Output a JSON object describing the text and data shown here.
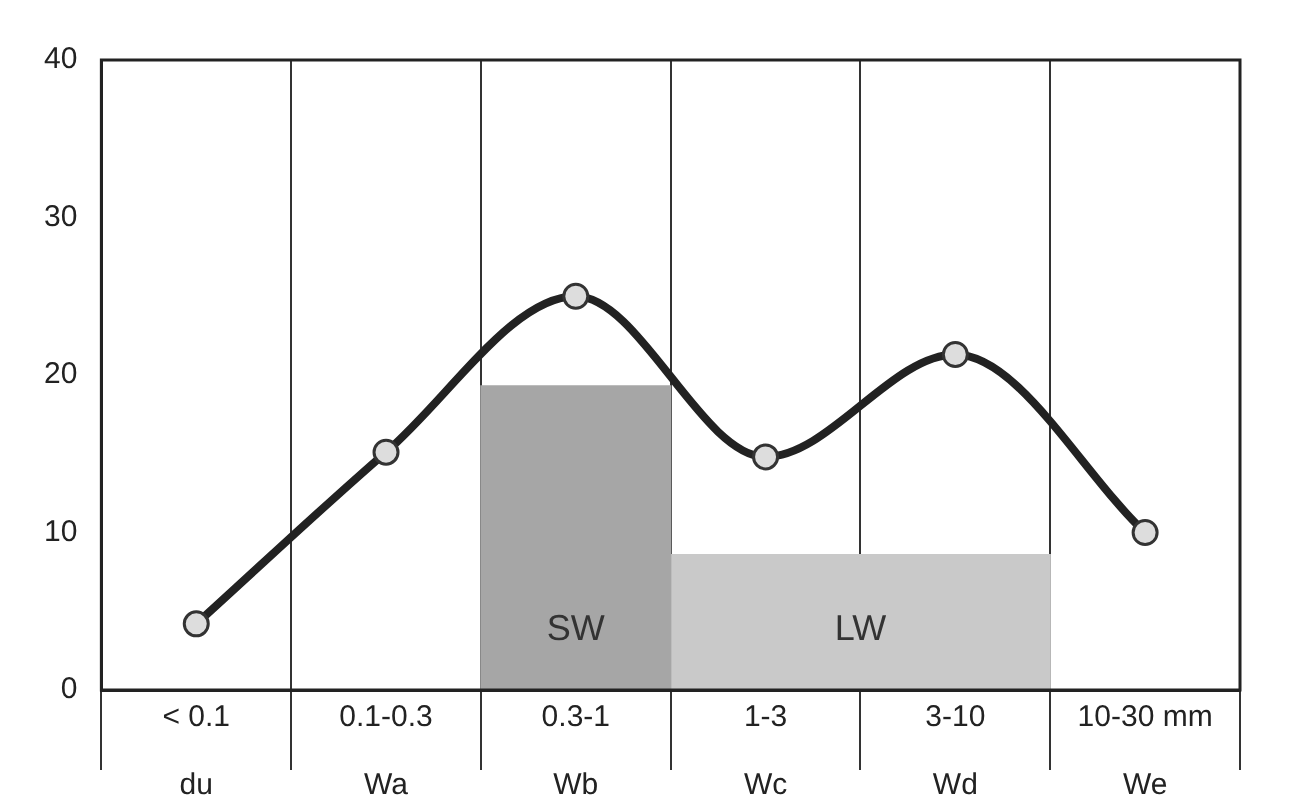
{
  "chart_data": {
    "type": "line",
    "categories": [
      "< 0.1\ndu",
      "0.1-0.3\nWa",
      "0.3-1\nWb",
      "1-3\nWc",
      "3-10\nWd",
      "10-30 mm\nWe"
    ],
    "series": [
      {
        "color": "#222222",
        "values": [
          4.2,
          15.1,
          25,
          14.8,
          21.3,
          10
        ]
      },
      {
        "type": "bar",
        "name": "SW",
        "color": "#a6a6a6",
        "values": [
          null,
          null,
          19.3,
          null,
          null,
          null
        ]
      },
      {
        "type": "bar",
        "name": "LW",
        "color": "#c9c9c9",
        "values": [
          null,
          null,
          null,
          8.6,
          8.6,
          null
        ]
      }
    ],
    "ylim": [
      0,
      40
    ],
    "yticks": [
      0,
      10,
      20,
      30,
      40
    ],
    "grid": "x",
    "legend": false,
    "marker": "circle",
    "line_style": "solid"
  }
}
